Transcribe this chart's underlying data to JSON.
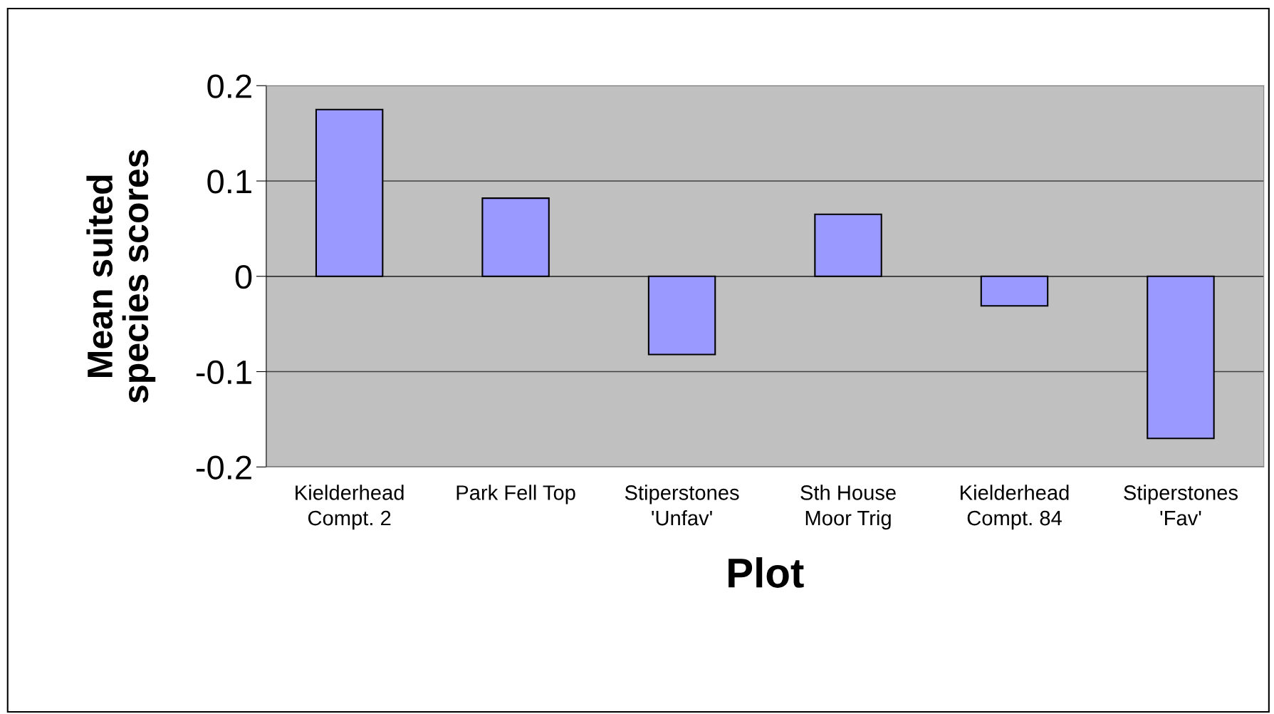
{
  "chart_data": {
    "type": "bar",
    "xlabel": "Plot",
    "ylabel": "Mean suited\nspecies scores",
    "categories": [
      "Kielderhead\nCompt. 2",
      "Park Fell Top",
      "Stiperstones\n'Unfav'",
      "Sth House\nMoor Trig",
      "Kielderhead\nCompt. 84",
      "Stiperstones\n'Fav'"
    ],
    "values": [
      0.175,
      0.082,
      -0.082,
      0.065,
      -0.031,
      -0.17
    ],
    "color": "#9999ff",
    "ylim": [
      -0.2,
      0.2
    ],
    "yticks": [
      -0.2,
      -0.1,
      0,
      0.1,
      0.2
    ],
    "grid": "y",
    "legend": false
  }
}
